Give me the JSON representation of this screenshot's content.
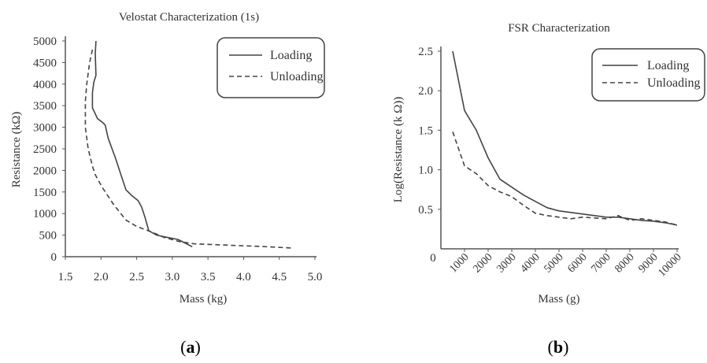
{
  "chart_data": [
    {
      "type": "line",
      "panel_label": "a",
      "title": "Velostat Characterization (1s)",
      "xlabel": "Mass (kg)",
      "ylabel": "Resistance (kΩ)",
      "xlim": [
        1.5,
        5.0
      ],
      "ylim": [
        0,
        5000
      ],
      "xticks": [
        "1.5",
        "2.0",
        "2.5",
        "3.0",
        "3.5",
        "4.0",
        "4.5",
        "5.0"
      ],
      "yticks": [
        "0",
        "500",
        "1000",
        "1500",
        "2000",
        "2500",
        "3000",
        "3500",
        "4000",
        "4500",
        "5000"
      ],
      "grid": false,
      "legend_position": "top-right",
      "series": [
        {
          "name": "Loading",
          "style": "solid",
          "x": [
            1.93,
            1.92,
            1.93,
            1.9,
            1.88,
            1.88,
            1.95,
            2.03,
            2.06,
            2.1,
            2.2,
            2.28,
            2.35,
            2.43,
            2.52,
            2.57,
            2.62,
            2.67,
            2.78,
            2.92,
            3.08,
            3.2,
            3.28
          ],
          "y": [
            5000,
            4700,
            4200,
            4050,
            3800,
            3450,
            3200,
            3100,
            3050,
            2750,
            2300,
            1900,
            1550,
            1420,
            1300,
            1150,
            900,
            600,
            500,
            450,
            400,
            300,
            230
          ]
        },
        {
          "name": "Unloading",
          "style": "dashed",
          "x": [
            1.88,
            1.84,
            1.8,
            1.78,
            1.78,
            1.82,
            1.88,
            1.92,
            2.02,
            2.18,
            2.35,
            2.5,
            2.7,
            2.88,
            3.1,
            3.3,
            3.6,
            3.9,
            4.2,
            4.45,
            4.68
          ],
          "y": [
            4800,
            4500,
            4000,
            3600,
            3000,
            2500,
            2100,
            1900,
            1600,
            1200,
            850,
            700,
            580,
            450,
            350,
            300,
            280,
            260,
            240,
            220,
            200
          ]
        }
      ]
    },
    {
      "type": "line",
      "panel_label": "b",
      "title": "FSR Characterization",
      "xlabel": "Mass (g)",
      "ylabel": "Log(Resistance (k Ω))",
      "xlim": [
        0,
        10000
      ],
      "ylim": [
        0,
        2.5
      ],
      "xticks": [
        "1000",
        "2000",
        "3000",
        "4000",
        "5000",
        "6000",
        "7000",
        "8000",
        "9000",
        "10000"
      ],
      "yticks": [
        "0.5",
        "1.0",
        "1.5",
        "2.0",
        "2.5"
      ],
      "origin_label": "0",
      "grid": false,
      "legend_position": "top-right",
      "series": [
        {
          "name": "Loading",
          "style": "solid",
          "x": [
            500,
            1000,
            1500,
            2000,
            2500,
            3000,
            3500,
            4000,
            4500,
            5000,
            5500,
            6000,
            6500,
            7000,
            7500,
            8000,
            8500,
            9000,
            9500,
            10000
          ],
          "y": [
            2.5,
            1.75,
            1.5,
            1.15,
            0.88,
            0.78,
            0.68,
            0.6,
            0.52,
            0.48,
            0.46,
            0.44,
            0.42,
            0.4,
            0.4,
            0.38,
            0.36,
            0.35,
            0.33,
            0.3
          ]
        },
        {
          "name": "Unloading",
          "style": "dashed",
          "x": [
            500,
            1000,
            1500,
            2000,
            2500,
            3000,
            3500,
            4000,
            4500,
            5000,
            5500,
            6000,
            6500,
            7000,
            7500,
            8000,
            8500,
            9000,
            9500,
            10000
          ],
          "y": [
            1.48,
            1.05,
            0.95,
            0.8,
            0.72,
            0.66,
            0.55,
            0.45,
            0.42,
            0.4,
            0.38,
            0.4,
            0.39,
            0.38,
            0.42,
            0.36,
            0.38,
            0.36,
            0.34,
            0.3
          ]
        }
      ]
    }
  ]
}
